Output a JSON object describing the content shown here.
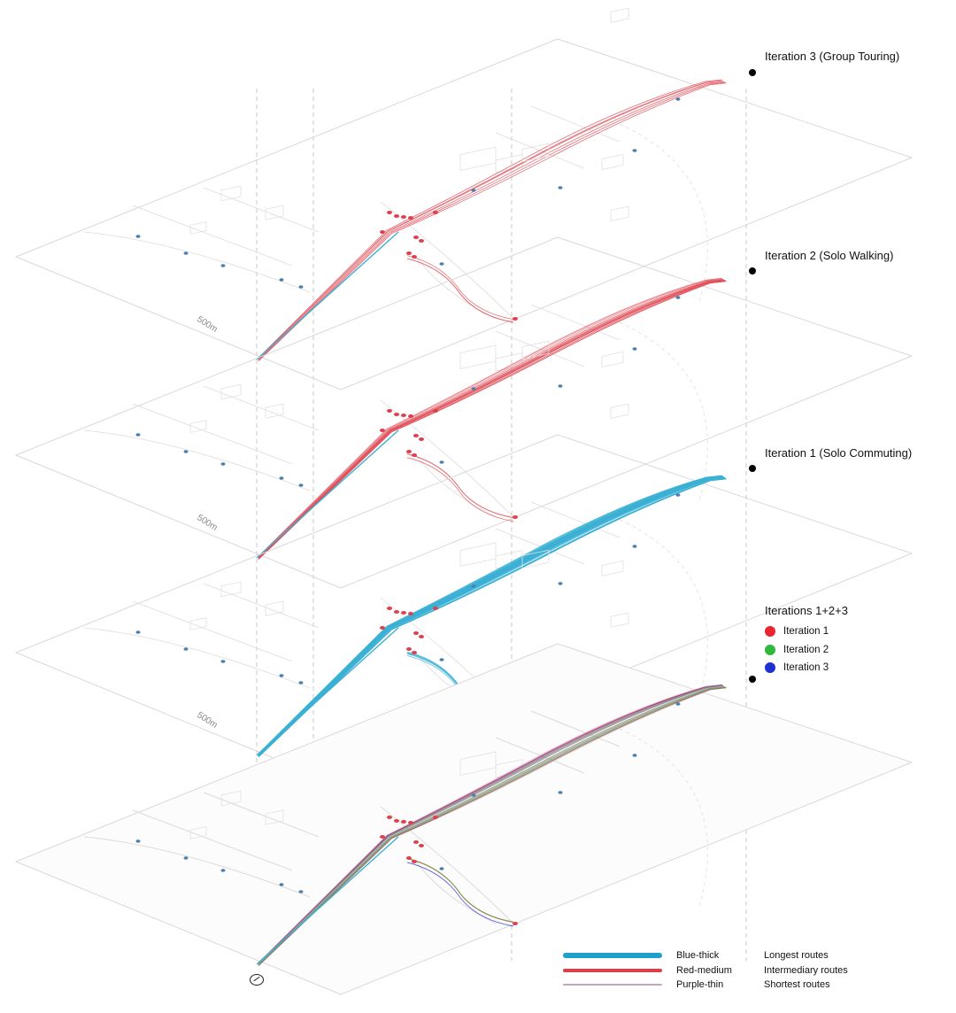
{
  "layers": [
    {
      "label": "Iteration 3 (Group Touring)",
      "scale_label": "500m",
      "route_color": "#e0505a",
      "mode": "group"
    },
    {
      "label": "Iteration 2 (Solo Walking)",
      "scale_label": "500m",
      "route_color": "#e0505a",
      "mode": "walking"
    },
    {
      "label": "Iteration 1 (Solo Commuting)",
      "scale_label": "500m",
      "route_color": "#3bb0d4",
      "mode": "commuting"
    },
    {
      "label": "",
      "scale_label": "",
      "route_color": "#9a9a9a",
      "mode": "combined"
    }
  ],
  "combined_legend": {
    "title": "Iterations 1+2+3",
    "items": [
      {
        "label": "Iteration 1",
        "color": "#e8262d"
      },
      {
        "label": "Iteration 2",
        "color": "#2fb83a"
      },
      {
        "label": "Iteration 3",
        "color": "#1f2fd0"
      }
    ]
  },
  "route_legend": [
    {
      "style": "Blue-thick",
      "meaning": "Longest routes",
      "color": "#1f9fcc",
      "thickness": "thick"
    },
    {
      "style": "Red-medium",
      "meaning": "Intermediary routes",
      "color": "#d8414a",
      "thickness": "medium"
    },
    {
      "style": "Purple-thin",
      "meaning": "Shortest routes",
      "color": "#c9a3b8",
      "thickness": "thin"
    }
  ],
  "colors": {
    "plane_outline": "#d9d9d9",
    "guide_line": "#c8c8c8",
    "poi_red": "#e0404c",
    "poi_blue": "#4a7fb0"
  },
  "icons": [
    "compass-icon"
  ]
}
